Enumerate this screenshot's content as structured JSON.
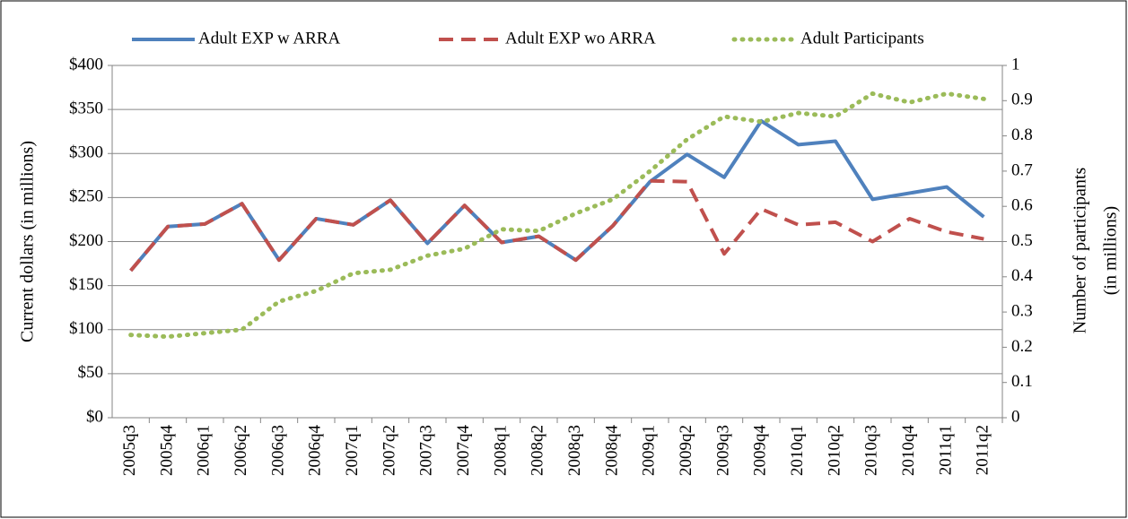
{
  "chart_data": {
    "type": "line",
    "categories": [
      "2005q3",
      "2005q4",
      "2006q1",
      "2006q2",
      "2006q3",
      "2006q4",
      "2007q1",
      "2007q2",
      "2007q3",
      "2007q4",
      "2008q1",
      "2008q2",
      "2008q3",
      "2008q4",
      "2009q1",
      "2009q2",
      "2009q3",
      "2009q4",
      "2010q1",
      "2010q2",
      "2010q3",
      "2010q4",
      "2011q1",
      "2011q2"
    ],
    "series": [
      {
        "name": "Adult EXP w ARRA",
        "color": "#4f81bd",
        "dash": "solid",
        "values": [
          167,
          217,
          220,
          243,
          179,
          226,
          219,
          247,
          198,
          241,
          199,
          206,
          179,
          218,
          268,
          299,
          273,
          337,
          310,
          314,
          248,
          255,
          262,
          228
        ]
      },
      {
        "name": "Adult EXP wo ARRA",
        "color": "#c0504d",
        "dash": "dashed",
        "values": [
          167,
          217,
          220,
          243,
          179,
          226,
          219,
          247,
          198,
          241,
          199,
          206,
          179,
          218,
          269,
          268,
          186,
          237,
          219,
          222,
          200,
          226,
          211,
          203
        ]
      },
      {
        "name": "Adult Participants",
        "color": "#9bbb59",
        "dash": "dotted",
        "axis": "y2",
        "values": [
          0.235,
          0.23,
          0.24,
          0.25,
          0.33,
          0.36,
          0.41,
          0.42,
          0.46,
          0.48,
          0.535,
          0.53,
          0.58,
          0.62,
          0.7,
          0.79,
          0.855,
          0.84,
          0.865,
          0.855,
          0.92,
          0.895,
          0.92,
          0.905
        ]
      }
    ],
    "ylabel": "Current dollars (in millions)",
    "y2label": [
      "Number of participants",
      "(in millions)"
    ],
    "ylim": [
      0,
      400
    ],
    "yticks": [
      {
        "value": 0,
        "label": "$0"
      },
      {
        "value": 50,
        "label": "$50"
      },
      {
        "value": 100,
        "label": "$100"
      },
      {
        "value": 150,
        "label": "$150"
      },
      {
        "value": 200,
        "label": "$200"
      },
      {
        "value": 250,
        "label": "$250"
      },
      {
        "value": 300,
        "label": "$300"
      },
      {
        "value": 350,
        "label": "$350"
      },
      {
        "value": 400,
        "label": "$400"
      }
    ],
    "y2lim": [
      0,
      1
    ],
    "y2ticks": [
      0,
      0.1,
      0.2,
      0.3,
      0.4,
      0.5,
      0.6,
      0.7,
      0.8,
      0.9,
      1
    ],
    "grid": true,
    "legend": "top"
  }
}
